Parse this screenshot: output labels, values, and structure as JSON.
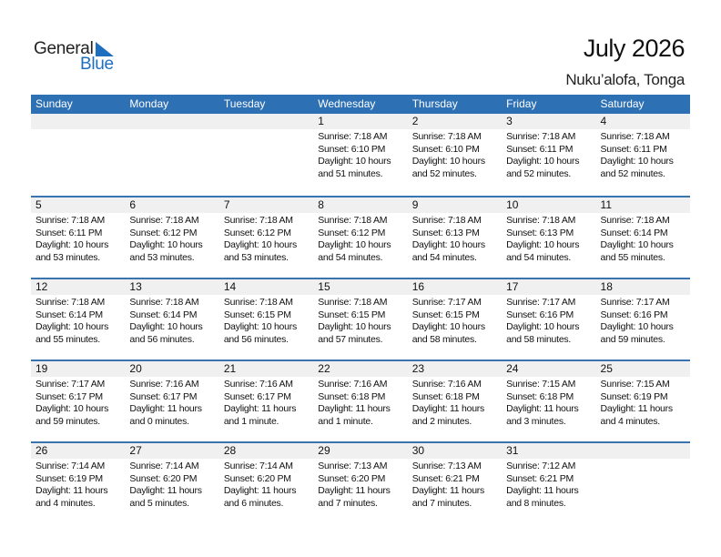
{
  "logo": {
    "word1": "General",
    "word2": "Blue",
    "accent": "#1e6fc0"
  },
  "title": "July 2026",
  "location": "Nuku’alofa, Tonga",
  "colors": {
    "header": "#2e70b4",
    "band": "#f0f0f0"
  },
  "weekdays": [
    "Sunday",
    "Monday",
    "Tuesday",
    "Wednesday",
    "Thursday",
    "Friday",
    "Saturday"
  ],
  "weeks": [
    [
      null,
      null,
      null,
      {
        "day": "1",
        "sunrise": "Sunrise: 7:18 AM",
        "sunset": "Sunset: 6:10 PM",
        "daylight1": "Daylight: 10 hours",
        "daylight2": "and 51 minutes."
      },
      {
        "day": "2",
        "sunrise": "Sunrise: 7:18 AM",
        "sunset": "Sunset: 6:10 PM",
        "daylight1": "Daylight: 10 hours",
        "daylight2": "and 52 minutes."
      },
      {
        "day": "3",
        "sunrise": "Sunrise: 7:18 AM",
        "sunset": "Sunset: 6:11 PM",
        "daylight1": "Daylight: 10 hours",
        "daylight2": "and 52 minutes."
      },
      {
        "day": "4",
        "sunrise": "Sunrise: 7:18 AM",
        "sunset": "Sunset: 6:11 PM",
        "daylight1": "Daylight: 10 hours",
        "daylight2": "and 52 minutes."
      }
    ],
    [
      {
        "day": "5",
        "sunrise": "Sunrise: 7:18 AM",
        "sunset": "Sunset: 6:11 PM",
        "daylight1": "Daylight: 10 hours",
        "daylight2": "and 53 minutes."
      },
      {
        "day": "6",
        "sunrise": "Sunrise: 7:18 AM",
        "sunset": "Sunset: 6:12 PM",
        "daylight1": "Daylight: 10 hours",
        "daylight2": "and 53 minutes."
      },
      {
        "day": "7",
        "sunrise": "Sunrise: 7:18 AM",
        "sunset": "Sunset: 6:12 PM",
        "daylight1": "Daylight: 10 hours",
        "daylight2": "and 53 minutes."
      },
      {
        "day": "8",
        "sunrise": "Sunrise: 7:18 AM",
        "sunset": "Sunset: 6:12 PM",
        "daylight1": "Daylight: 10 hours",
        "daylight2": "and 54 minutes."
      },
      {
        "day": "9",
        "sunrise": "Sunrise: 7:18 AM",
        "sunset": "Sunset: 6:13 PM",
        "daylight1": "Daylight: 10 hours",
        "daylight2": "and 54 minutes."
      },
      {
        "day": "10",
        "sunrise": "Sunrise: 7:18 AM",
        "sunset": "Sunset: 6:13 PM",
        "daylight1": "Daylight: 10 hours",
        "daylight2": "and 54 minutes."
      },
      {
        "day": "11",
        "sunrise": "Sunrise: 7:18 AM",
        "sunset": "Sunset: 6:14 PM",
        "daylight1": "Daylight: 10 hours",
        "daylight2": "and 55 minutes."
      }
    ],
    [
      {
        "day": "12",
        "sunrise": "Sunrise: 7:18 AM",
        "sunset": "Sunset: 6:14 PM",
        "daylight1": "Daylight: 10 hours",
        "daylight2": "and 55 minutes."
      },
      {
        "day": "13",
        "sunrise": "Sunrise: 7:18 AM",
        "sunset": "Sunset: 6:14 PM",
        "daylight1": "Daylight: 10 hours",
        "daylight2": "and 56 minutes."
      },
      {
        "day": "14",
        "sunrise": "Sunrise: 7:18 AM",
        "sunset": "Sunset: 6:15 PM",
        "daylight1": "Daylight: 10 hours",
        "daylight2": "and 56 minutes."
      },
      {
        "day": "15",
        "sunrise": "Sunrise: 7:18 AM",
        "sunset": "Sunset: 6:15 PM",
        "daylight1": "Daylight: 10 hours",
        "daylight2": "and 57 minutes."
      },
      {
        "day": "16",
        "sunrise": "Sunrise: 7:17 AM",
        "sunset": "Sunset: 6:15 PM",
        "daylight1": "Daylight: 10 hours",
        "daylight2": "and 58 minutes."
      },
      {
        "day": "17",
        "sunrise": "Sunrise: 7:17 AM",
        "sunset": "Sunset: 6:16 PM",
        "daylight1": "Daylight: 10 hours",
        "daylight2": "and 58 minutes."
      },
      {
        "day": "18",
        "sunrise": "Sunrise: 7:17 AM",
        "sunset": "Sunset: 6:16 PM",
        "daylight1": "Daylight: 10 hours",
        "daylight2": "and 59 minutes."
      }
    ],
    [
      {
        "day": "19",
        "sunrise": "Sunrise: 7:17 AM",
        "sunset": "Sunset: 6:17 PM",
        "daylight1": "Daylight: 10 hours",
        "daylight2": "and 59 minutes."
      },
      {
        "day": "20",
        "sunrise": "Sunrise: 7:16 AM",
        "sunset": "Sunset: 6:17 PM",
        "daylight1": "Daylight: 11 hours",
        "daylight2": "and 0 minutes."
      },
      {
        "day": "21",
        "sunrise": "Sunrise: 7:16 AM",
        "sunset": "Sunset: 6:17 PM",
        "daylight1": "Daylight: 11 hours",
        "daylight2": "and 1 minute."
      },
      {
        "day": "22",
        "sunrise": "Sunrise: 7:16 AM",
        "sunset": "Sunset: 6:18 PM",
        "daylight1": "Daylight: 11 hours",
        "daylight2": "and 1 minute."
      },
      {
        "day": "23",
        "sunrise": "Sunrise: 7:16 AM",
        "sunset": "Sunset: 6:18 PM",
        "daylight1": "Daylight: 11 hours",
        "daylight2": "and 2 minutes."
      },
      {
        "day": "24",
        "sunrise": "Sunrise: 7:15 AM",
        "sunset": "Sunset: 6:18 PM",
        "daylight1": "Daylight: 11 hours",
        "daylight2": "and 3 minutes."
      },
      {
        "day": "25",
        "sunrise": "Sunrise: 7:15 AM",
        "sunset": "Sunset: 6:19 PM",
        "daylight1": "Daylight: 11 hours",
        "daylight2": "and 4 minutes."
      }
    ],
    [
      {
        "day": "26",
        "sunrise": "Sunrise: 7:14 AM",
        "sunset": "Sunset: 6:19 PM",
        "daylight1": "Daylight: 11 hours",
        "daylight2": "and 4 minutes."
      },
      {
        "day": "27",
        "sunrise": "Sunrise: 7:14 AM",
        "sunset": "Sunset: 6:20 PM",
        "daylight1": "Daylight: 11 hours",
        "daylight2": "and 5 minutes."
      },
      {
        "day": "28",
        "sunrise": "Sunrise: 7:14 AM",
        "sunset": "Sunset: 6:20 PM",
        "daylight1": "Daylight: 11 hours",
        "daylight2": "and 6 minutes."
      },
      {
        "day": "29",
        "sunrise": "Sunrise: 7:13 AM",
        "sunset": "Sunset: 6:20 PM",
        "daylight1": "Daylight: 11 hours",
        "daylight2": "and 7 minutes."
      },
      {
        "day": "30",
        "sunrise": "Sunrise: 7:13 AM",
        "sunset": "Sunset: 6:21 PM",
        "daylight1": "Daylight: 11 hours",
        "daylight2": "and 7 minutes."
      },
      {
        "day": "31",
        "sunrise": "Sunrise: 7:12 AM",
        "sunset": "Sunset: 6:21 PM",
        "daylight1": "Daylight: 11 hours",
        "daylight2": "and 8 minutes."
      },
      null
    ]
  ]
}
